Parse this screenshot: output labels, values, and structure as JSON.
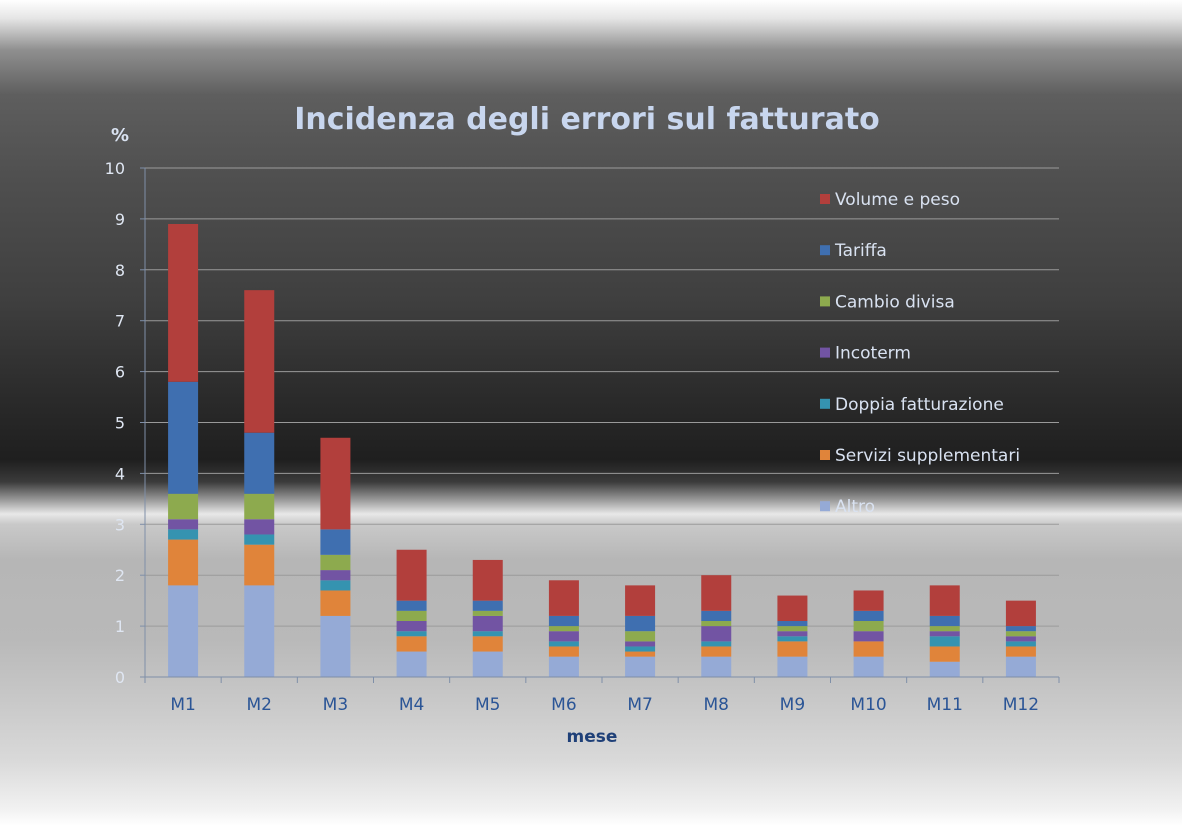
{
  "chart_data": {
    "type": "bar",
    "stacked": true,
    "title": "Incidenza degli errori sul fatturato",
    "xlabel": "mese",
    "ylabel": "%",
    "ylim": [
      0,
      10
    ],
    "yticks": [
      "10",
      "9",
      "8",
      "7",
      "6",
      "5",
      "4",
      "3",
      "2",
      "1",
      "0"
    ],
    "grid": true,
    "legend_position": "right",
    "categories": [
      "M1",
      "M2",
      "M3",
      "M4",
      "M5",
      "M6",
      "M7",
      "M8",
      "M9",
      "M10",
      "M11",
      "M12"
    ],
    "series": [
      {
        "name": "Altro",
        "color": "#95aad6",
        "values": [
          1.8,
          1.8,
          1.2,
          0.5,
          0.5,
          0.4,
          0.4,
          0.4,
          0.4,
          0.4,
          0.3,
          0.4
        ]
      },
      {
        "name": "Servizi supplementari",
        "color": "#e0843a",
        "values": [
          0.9,
          0.8,
          0.5,
          0.3,
          0.3,
          0.2,
          0.1,
          0.2,
          0.3,
          0.3,
          0.3,
          0.2
        ]
      },
      {
        "name": "Doppia fatturazione",
        "color": "#3593b0",
        "values": [
          0.2,
          0.2,
          0.2,
          0.1,
          0.1,
          0.1,
          0.1,
          0.1,
          0.1,
          0.0,
          0.2,
          0.1
        ]
      },
      {
        "name": "Incoterm",
        "color": "#7254a3",
        "values": [
          0.2,
          0.3,
          0.2,
          0.2,
          0.3,
          0.2,
          0.1,
          0.3,
          0.1,
          0.2,
          0.1,
          0.1
        ]
      },
      {
        "name": "Cambio divisa",
        "color": "#8daa4e",
        "values": [
          0.5,
          0.5,
          0.3,
          0.2,
          0.1,
          0.1,
          0.2,
          0.1,
          0.1,
          0.2,
          0.1,
          0.1
        ]
      },
      {
        "name": "Tariffa",
        "color": "#3f6fb0",
        "values": [
          2.2,
          1.2,
          0.5,
          0.2,
          0.2,
          0.2,
          0.3,
          0.2,
          0.1,
          0.2,
          0.2,
          0.1
        ]
      },
      {
        "name": "Volume e peso",
        "color": "#b23f3c",
        "values": [
          3.1,
          2.8,
          1.8,
          1.0,
          0.8,
          0.7,
          0.6,
          0.7,
          0.5,
          0.4,
          0.6,
          0.5
        ]
      }
    ]
  }
}
